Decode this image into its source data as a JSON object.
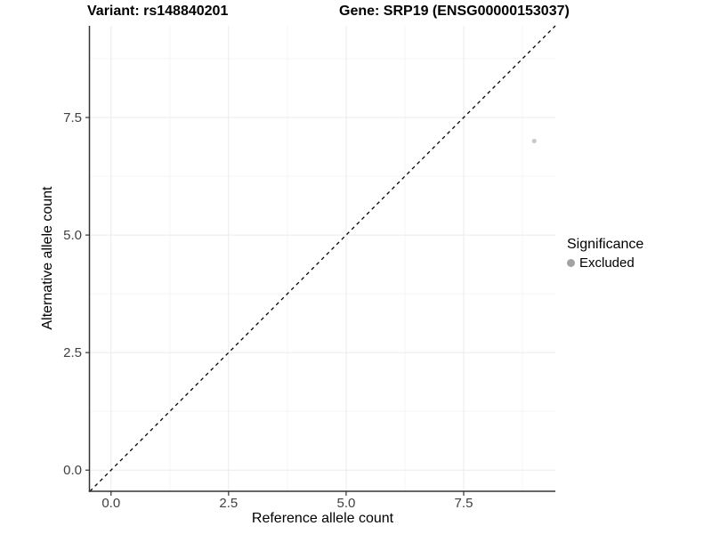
{
  "chart_data": {
    "type": "scatter",
    "title_left": "Variant: rs148840201",
    "title_right": "Gene: SRP19 (ENSG00000153037)",
    "xlabel": "Reference allele count",
    "ylabel": "Alternative allele count",
    "xlim": [
      -0.45,
      9.45
    ],
    "ylim": [
      -0.45,
      9.45
    ],
    "x_ticks": [
      0,
      2.5,
      5,
      7.5
    ],
    "x_tick_labels": [
      "0.0",
      "2.5",
      "5.0",
      "7.5"
    ],
    "y_ticks": [
      0,
      2.5,
      5,
      7.5
    ],
    "y_tick_labels": [
      "0.0",
      "2.5",
      "5.0",
      "7.5"
    ],
    "x_minor_ticks": [
      1.25,
      3.75,
      6.25,
      8.75
    ],
    "y_minor_ticks": [
      1.25,
      3.75,
      6.25,
      8.75
    ],
    "grid": true,
    "points": [
      {
        "x": 9,
        "y": 7,
        "series": "Excluded"
      }
    ],
    "identity_line": {
      "style": "dashed",
      "slope": 1,
      "intercept": 0,
      "color": "#000000"
    },
    "legend": {
      "title": "Significance",
      "position": "right",
      "items": [
        {
          "label": "Excluded",
          "color": "#a3a3a3"
        }
      ]
    },
    "colors": {
      "point": "#c9c9c9",
      "grid_major": "#ebebeb",
      "grid_minor": "#f5f5f5",
      "axis_line": "#333333",
      "tick_text": "#404040"
    }
  }
}
